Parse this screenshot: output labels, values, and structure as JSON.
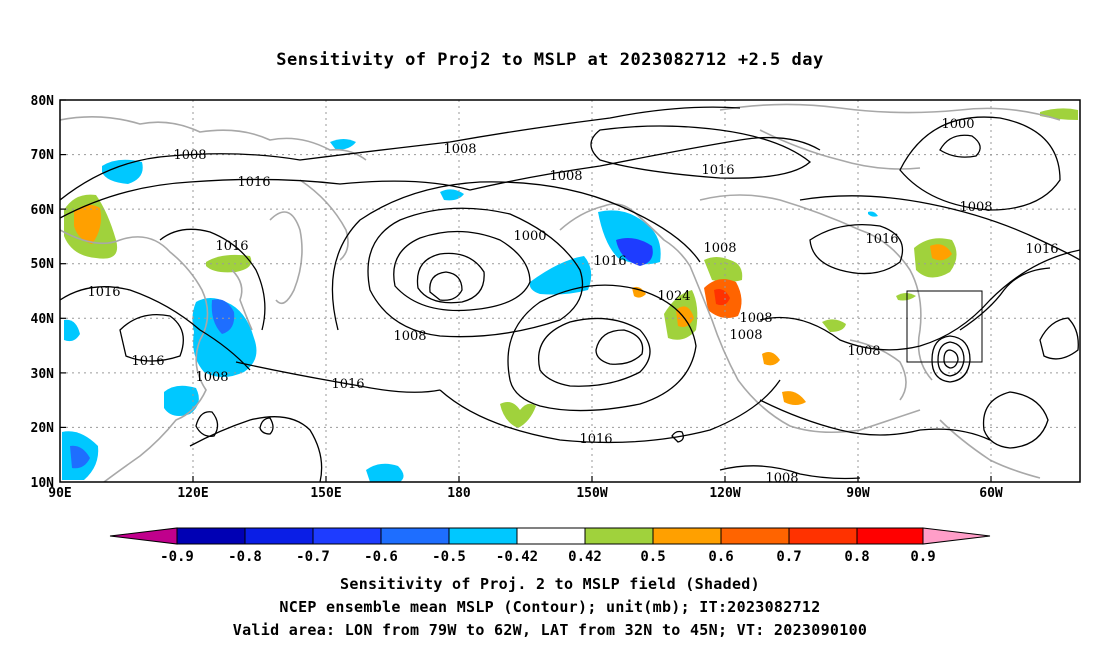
{
  "title": "Sensitivity of Proj2 to MSLP at 2023082712 +2.5 day",
  "map": {
    "lat_ticks": [
      "80N",
      "70N",
      "60N",
      "50N",
      "40N",
      "30N",
      "20N",
      "10N"
    ],
    "lon_ticks": [
      "90E",
      "120E",
      "150E",
      "180",
      "150W",
      "120W",
      "90W",
      "60W"
    ],
    "contour_labels": [
      "1008",
      "1008",
      "1008",
      "1016",
      "1000",
      "1008",
      "1016",
      "1008",
      "1000",
      "1016",
      "1016",
      "1016",
      "1016",
      "1016",
      "1016",
      "1008",
      "1024",
      "1008",
      "1008",
      "1008",
      "1016",
      "1016",
      "1008",
      "1016",
      "1008"
    ],
    "valid_area": {
      "lon_from": "79W",
      "lon_to": "62W",
      "lat_from": "32N",
      "lat_to": "45N"
    }
  },
  "colorbar": {
    "labels": [
      "-0.9",
      "-0.8",
      "-0.7",
      "-0.6",
      "-0.5",
      "-0.42",
      "0.42",
      "0.5",
      "0.6",
      "0.7",
      "0.8",
      "0.9"
    ],
    "colors": [
      "#c0008c",
      "#0000b4",
      "#0a1ee6",
      "#1e3cff",
      "#1e6eff",
      "#00c8ff",
      "#ffffff",
      "#a0d23c",
      "#ffa000",
      "#ff6400",
      "#ff3200",
      "#ff0000",
      "#ff9ec8"
    ]
  },
  "captions": {
    "line1": "Sensitivity of Proj. 2 to MSLP field (Shaded)",
    "line2": "NCEP ensemble mean MSLP (Contour); unit(mb); IT:2023082712",
    "line3": "Valid area: LON from 79W to 62W, LAT from 32N to 45N; VT: 2023090100"
  }
}
